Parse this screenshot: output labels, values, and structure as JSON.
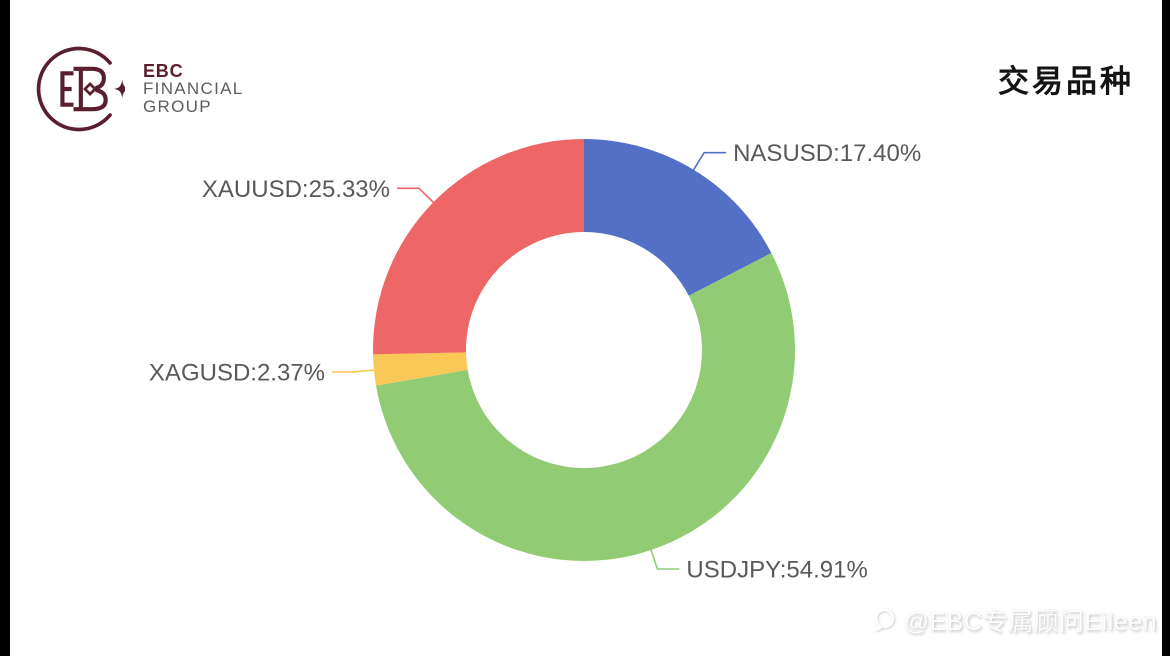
{
  "page": {
    "background": "#ffffff",
    "side_bar_color": "#000000"
  },
  "logo": {
    "brand": "EBC",
    "line2": "FINANCIAL",
    "line3": "GROUP",
    "brand_color": "#5a1f2e",
    "secondary_color": "#5c5d60"
  },
  "header": {
    "title": "交易品种"
  },
  "chart_data": {
    "type": "pie",
    "subtype": "donut",
    "title": "交易品种",
    "unit": "%",
    "start_angle_deg": 0,
    "clockwise": true,
    "label_color": "#595959",
    "segments": [
      {
        "name": "NASUSD",
        "value": 17.4,
        "label": "NASUSD:17.40%",
        "color": "#5470c6"
      },
      {
        "name": "USDJPY",
        "value": 54.91,
        "label": "USDJPY:54.91%",
        "color": "#91cc75"
      },
      {
        "name": "XAGUSD",
        "value": 2.37,
        "label": "XAGUSD:2.37%",
        "color": "#fac858"
      },
      {
        "name": "XAUUSD",
        "value": 25.33,
        "label": "XAUUSD:25.33%",
        "color": "#ee6666"
      }
    ]
  },
  "watermark": {
    "icon": "chat-bubble-icon",
    "text": "@EBC专属顾问Eileen"
  }
}
